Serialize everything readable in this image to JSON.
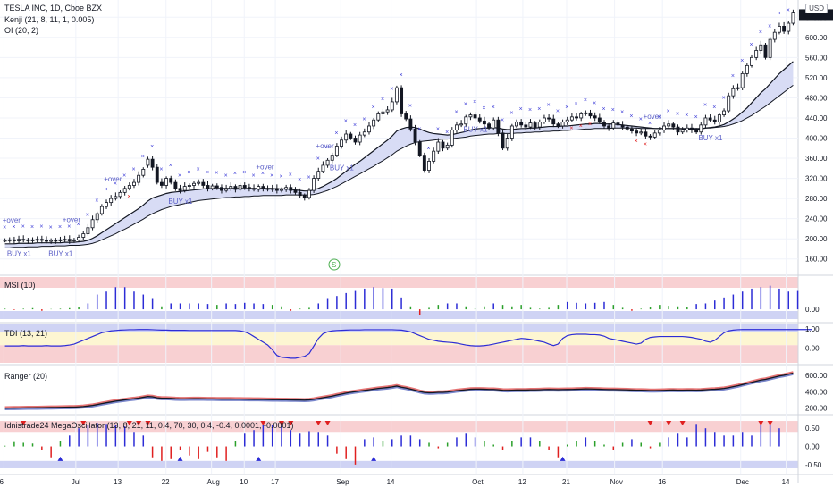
{
  "legend": {
    "symbol": "TESLA INC, 1D, Cboe BZX",
    "kenji": "Kenji (21, 8, 11, 1, 0.005)",
    "oi": "OI (20, 2)"
  },
  "currency": "USD",
  "panes": {
    "msi": "MSI (10)",
    "tdi": "TDI (13, 21)",
    "ranger": "Ranger (20)",
    "mega": "Idnistrade24 MegaOscillator (13, 8, 21, 11, 0.4, 70, 30, 0.4, -0.4, 0.0001, -0.0001)"
  },
  "colors": {
    "up": "#ffffff",
    "down": "#131722",
    "band_fill": "#d8dcf5",
    "band_fill_green": "#d6eed6",
    "line_dark": "#131722",
    "cross_blue": "#3f3fd8",
    "cross_red": "#e02020",
    "bar_blue": "#2c2cd6",
    "bar_red": "#e02020",
    "bar_green": "#2aa02a",
    "zone_red": "#f8d0d2",
    "zone_blue": "#cfd3f4",
    "zone_yellow": "#fdf6d2"
  },
  "chart_data": {
    "type": "candlestick",
    "x_labels": [
      "6",
      "Jul",
      "13",
      "22",
      "Aug",
      "10",
      "17",
      "Sep",
      "14",
      "Oct",
      "12",
      "21",
      "Nov",
      "16",
      "Dec",
      "14"
    ],
    "y_ticks": [
      160,
      200,
      240,
      280,
      320,
      360,
      400,
      440,
      480,
      520,
      560,
      600,
      640
    ],
    "last_price": "649.88",
    "annotations": [
      "BUY x1",
      "+over"
    ],
    "timeline_marker": "S",
    "indicator_ticks": {
      "msi": [
        "0.00"
      ],
      "tdi": [
        "1.00",
        "0.00"
      ],
      "ranger": [
        "600.00",
        "400.00",
        "200.00"
      ],
      "mega": [
        "0.50",
        "0.00",
        "-0.50"
      ]
    },
    "close": [
      197,
      198,
      196,
      199,
      198,
      196,
      198,
      199,
      197,
      195,
      197,
      196,
      198,
      199,
      196,
      198,
      203,
      210,
      222,
      238,
      250,
      264,
      272,
      280,
      284,
      292,
      300,
      306,
      312,
      326,
      338,
      358,
      342,
      312,
      306,
      320,
      312,
      300,
      296,
      304,
      306,
      310,
      312,
      306,
      300,
      305,
      302,
      296,
      300,
      304,
      298,
      306,
      302,
      300,
      298,
      304,
      300,
      298,
      300,
      296,
      298,
      302,
      296,
      292,
      286,
      282,
      296,
      320,
      334,
      346,
      356,
      366,
      384,
      396,
      408,
      400,
      392,
      406,
      412,
      424,
      436,
      448,
      452,
      456,
      472,
      500,
      448,
      438,
      418,
      392,
      366,
      336,
      354,
      374,
      392,
      380,
      386,
      416,
      426,
      428,
      442,
      446,
      440,
      434,
      428,
      420,
      436,
      410,
      380,
      400,
      424,
      432,
      426,
      422,
      430,
      422,
      432,
      440,
      438,
      428,
      424,
      432,
      436,
      442,
      440,
      448,
      450,
      444,
      440,
      432,
      424,
      420,
      430,
      426,
      422,
      418,
      414,
      410,
      412,
      404,
      402,
      410,
      416,
      424,
      428,
      422,
      412,
      416,
      420,
      416,
      412,
      426,
      440,
      436,
      432,
      446,
      454,
      484,
      498,
      500,
      528,
      544,
      560,
      574,
      585,
      560,
      596,
      610,
      622,
      612,
      628,
      650
    ],
    "open": [
      197,
      197,
      198,
      196,
      199,
      198,
      196,
      198,
      199,
      197,
      195,
      197,
      196,
      198,
      199,
      196,
      198,
      203,
      210,
      222,
      238,
      250,
      264,
      272,
      280,
      284,
      292,
      300,
      306,
      312,
      326,
      346,
      358,
      342,
      312,
      306,
      320,
      312,
      300,
      296,
      304,
      306,
      310,
      312,
      306,
      300,
      305,
      302,
      296,
      300,
      304,
      298,
      306,
      302,
      300,
      298,
      304,
      300,
      298,
      300,
      296,
      298,
      302,
      296,
      292,
      286,
      282,
      296,
      320,
      334,
      346,
      356,
      366,
      384,
      396,
      408,
      400,
      392,
      406,
      412,
      424,
      436,
      448,
      452,
      456,
      472,
      500,
      448,
      438,
      418,
      392,
      366,
      336,
      354,
      374,
      392,
      380,
      386,
      416,
      426,
      428,
      442,
      446,
      440,
      434,
      428,
      420,
      436,
      410,
      380,
      400,
      424,
      432,
      426,
      422,
      430,
      422,
      432,
      440,
      438,
      428,
      424,
      432,
      436,
      442,
      440,
      448,
      450,
      444,
      440,
      432,
      424,
      420,
      430,
      426,
      422,
      418,
      414,
      410,
      412,
      404,
      402,
      410,
      416,
      424,
      428,
      422,
      412,
      416,
      420,
      416,
      412,
      426,
      440,
      436,
      432,
      446,
      454,
      484,
      498,
      500,
      528,
      544,
      560,
      574,
      585,
      560,
      596,
      610,
      622,
      612,
      628
    ],
    "ma_fast": [
      190,
      190,
      190,
      191,
      191,
      191,
      191,
      192,
      192,
      192,
      192,
      192,
      192,
      193,
      193,
      193,
      194,
      195,
      197,
      201,
      206,
      212,
      218,
      224,
      230,
      236,
      242,
      248,
      254,
      260,
      267,
      275,
      281,
      284,
      287,
      290,
      292,
      293,
      294,
      295,
      296,
      297,
      298,
      299,
      299,
      300,
      300,
      300,
      300,
      300,
      300,
      300,
      300,
      300,
      300,
      300,
      300,
      300,
      300,
      299,
      299,
      299,
      298,
      297,
      296,
      295,
      295,
      297,
      300,
      304,
      309,
      314,
      320,
      327,
      334,
      341,
      348,
      354,
      361,
      368,
      375,
      382,
      389,
      396,
      404,
      414,
      418,
      421,
      422,
      421,
      418,
      414,
      411,
      409,
      408,
      407,
      406,
      407,
      409,
      411,
      413,
      416,
      418,
      419,
      420,
      420,
      421,
      420,
      418,
      417,
      417,
      418,
      419,
      419,
      420,
      420,
      421,
      422,
      423,
      423,
      423,
      424,
      424,
      425,
      426,
      427,
      428,
      428,
      429,
      429,
      428,
      428,
      428,
      427,
      426,
      425,
      424,
      423,
      422,
      421,
      420,
      419,
      419,
      419,
      419,
      419,
      419,
      418,
      418,
      418,
      418,
      418,
      420,
      421,
      422,
      424,
      427,
      432,
      438,
      444,
      452,
      460,
      470,
      480,
      490,
      498,
      508,
      518,
      528,
      536,
      544,
      552
    ],
    "ma_slow": [
      182,
      182,
      183,
      183,
      183,
      184,
      184,
      184,
      185,
      185,
      185,
      186,
      186,
      186,
      187,
      187,
      187,
      188,
      189,
      191,
      194,
      198,
      202,
      206,
      210,
      215,
      219,
      224,
      229,
      234,
      239,
      245,
      250,
      254,
      258,
      261,
      264,
      266,
      268,
      270,
      272,
      274,
      276,
      277,
      278,
      279,
      280,
      281,
      282,
      282,
      283,
      283,
      284,
      284,
      285,
      285,
      286,
      286,
      286,
      286,
      286,
      287,
      287,
      287,
      287,
      287,
      287,
      288,
      290,
      293,
      296,
      300,
      304,
      309,
      314,
      319,
      324,
      329,
      334,
      339,
      344,
      350,
      355,
      361,
      367,
      374,
      379,
      384,
      388,
      391,
      393,
      394,
      395,
      396,
      397,
      398,
      398,
      399,
      400,
      401,
      402,
      404,
      405,
      406,
      407,
      408,
      408,
      409,
      409,
      409,
      409,
      410,
      410,
      411,
      411,
      412,
      412,
      413,
      413,
      414,
      414,
      415,
      415,
      416,
      416,
      417,
      418,
      418,
      419,
      419,
      419,
      419,
      420,
      420,
      420,
      420,
      420,
      420,
      419,
      419,
      419,
      419,
      419,
      419,
      419,
      419,
      419,
      419,
      419,
      419,
      419,
      419,
      420,
      420,
      421,
      422,
      423,
      425,
      428,
      431,
      435,
      440,
      445,
      451,
      457,
      463,
      470,
      477,
      484,
      491,
      498,
      505
    ],
    "msi_values": [
      0.02,
      0.05,
      -0.02,
      0.03,
      0.02,
      -0.01,
      0.04,
      0.03,
      -0.05,
      0.02,
      0.01,
      0.03,
      0.02,
      -0.02,
      0.04,
      0.02,
      0.08,
      0.12,
      0.2,
      0.35,
      0.5,
      0.55,
      0.6,
      0.7,
      0.75,
      0.8,
      0.75,
      0.7,
      0.6,
      0.55,
      0.5,
      0.4,
      0.35,
      0.2,
      0.1,
      0.15,
      0.2,
      0.18,
      0.2,
      0.22,
      0.2,
      0.25,
      0.2,
      0.22,
      0.18,
      0.2,
      0.15,
      0.18,
      0.2,
      0.22,
      0.18,
      0.2,
      0.22,
      0.25,
      0.2,
      0.22,
      0.18,
      0.2,
      0.15,
      0.12,
      0.1,
      0.08,
      -0.05,
      0.04,
      0.02,
      -0.08,
      0.05,
      0.12,
      0.2,
      0.3,
      0.35,
      0.4,
      0.45,
      0.5,
      0.55,
      0.6,
      0.62,
      0.65,
      0.7,
      0.72,
      0.75,
      0.7,
      0.72,
      0.75,
      0.7,
      0.65,
      0.4,
      0.3,
      0.1,
      -0.1,
      -0.2,
      -0.15,
      0.05,
      0.1,
      0.15,
      0.1,
      0.2,
      0.25,
      0.2,
      0.15,
      0.1,
      0.05,
      0.02,
      -0.02,
      0.1,
      0.18,
      0.2,
      0.25,
      0.15,
      0.05,
      0.1,
      0.2,
      0.15,
      0.1,
      0.05,
      0.08,
      0.02,
      -0.02,
      0.05,
      0.1,
      0.15,
      0.2,
      0.25,
      0.2,
      0.22,
      0.25,
      0.2,
      0.25,
      0.22,
      0.2,
      0.25,
      0.2,
      0.15,
      0.1,
      0.05,
      0.02,
      -0.05,
      0.03,
      0.02,
      0.05,
      0.08,
      0.12,
      0.15,
      0.1,
      0.12,
      0.08,
      0.1,
      0.05,
      0.08,
      0.12,
      0.18,
      0.25,
      0.2,
      0.25,
      0.3,
      0.35,
      0.4,
      0.45,
      0.5,
      0.55,
      0.6,
      0.65,
      0.7,
      0.72,
      0.75,
      0.78,
      0.8,
      0.75,
      0.7,
      0.65,
      0.6,
      0.65,
      0.62,
      0.6
    ],
    "tdi_values": [
      0.1,
      0.1,
      0.1,
      0.1,
      0.12,
      0.1,
      0.1,
      0.1,
      0.1,
      0.12,
      0.1,
      0.1,
      0.1,
      0.12,
      0.15,
      0.2,
      0.3,
      0.4,
      0.5,
      0.6,
      0.7,
      0.8,
      0.85,
      0.9,
      0.92,
      0.94,
      0.95,
      0.96,
      0.96,
      0.97,
      0.97,
      0.97,
      0.96,
      0.95,
      0.94,
      0.94,
      0.93,
      0.93,
      0.93,
      0.93,
      0.92,
      0.92,
      0.92,
      0.92,
      0.92,
      0.92,
      0.92,
      0.92,
      0.92,
      0.92,
      0.92,
      0.9,
      0.85,
      0.75,
      0.6,
      0.45,
      0.3,
      0.15,
      -0.1,
      -0.4,
      -0.5,
      -0.52,
      -0.55,
      -0.55,
      -0.5,
      -0.45,
      -0.3,
      0.1,
      0.5,
      0.75,
      0.85,
      0.9,
      0.92,
      0.93,
      0.94,
      0.95,
      0.95,
      0.95,
      0.96,
      0.96,
      0.96,
      0.96,
      0.96,
      0.96,
      0.96,
      0.95,
      0.94,
      0.9,
      0.85,
      0.75,
      0.65,
      0.55,
      0.45,
      0.4,
      0.35,
      0.32,
      0.3,
      0.28,
      0.25,
      0.2,
      0.15,
      0.12,
      0.1,
      0.1,
      0.12,
      0.15,
      0.2,
      0.25,
      0.3,
      0.35,
      0.4,
      0.45,
      0.5,
      0.48,
      0.45,
      0.4,
      0.35,
      0.3,
      0.2,
      0.12,
      0.2,
      0.5,
      0.65,
      0.7,
      0.72,
      0.72,
      0.72,
      0.7,
      0.7,
      0.68,
      0.62,
      0.5,
      0.45,
      0.4,
      0.35,
      0.3,
      0.25,
      0.2,
      0.25,
      0.45,
      0.55,
      0.58,
      0.6,
      0.6,
      0.6,
      0.6,
      0.6,
      0.6,
      0.58,
      0.55,
      0.5,
      0.45,
      0.35,
      0.3,
      0.4,
      0.6,
      0.8,
      0.9,
      0.94,
      0.96,
      0.97,
      0.97,
      0.97,
      0.97,
      0.97,
      0.97,
      0.97,
      0.97,
      0.97,
      0.97,
      0.97,
      0.97,
      0.97,
      0.97,
      0.97,
      0.97
    ],
    "mega_values": [
      0.02,
      0.08,
      0.12,
      0.15,
      0.1,
      0.12,
      0.08,
      0.1,
      -0.1,
      -0.2,
      -0.3,
      -0.5,
      0.15,
      0.25,
      0.3,
      0.4,
      0.5,
      0.55,
      0.6,
      0.62,
      0.65,
      0.6,
      0.62,
      0.65,
      0.6,
      0.58,
      0.55,
      0.45,
      0.4,
      0.35,
      0.3,
      0.35,
      -0.3,
      -0.5,
      -0.4,
      -0.3,
      -0.35,
      -0.2,
      -0.1,
      -0.15,
      -0.25,
      -0.3,
      -0.35,
      -0.2,
      -0.15,
      -0.25,
      -0.3,
      -0.35,
      -0.4,
      -0.5,
      0.15,
      0.25,
      0.35,
      0.4,
      0.45,
      0.55,
      0.6,
      0.62,
      0.6,
      0.58,
      0.62,
      0.5,
      0.45,
      0.4,
      0.35,
      0.4,
      0.42,
      0.45,
      0.4,
      0.35,
      0.3,
      -0.1,
      -0.2,
      -0.3,
      -0.35,
      -0.4,
      -0.5,
      0.1,
      0.2,
      0.3,
      0.25,
      0.2,
      0.15,
      0.1,
      0.2,
      0.25,
      0.3,
      0.35,
      0.3,
      0.25,
      0.2,
      0.15,
      0.1,
      0.05,
      -0.05,
      -0.1,
      0.1,
      0.2,
      0.25,
      0.3,
      0.35,
      0.3,
      0.25,
      0.2,
      0.15,
      0.1,
      0.05,
      -0.05,
      -0.1,
      0.1,
      0.15,
      0.2,
      0.25,
      0.3,
      0.25,
      0.2,
      0.15,
      0.1,
      -0.1,
      -0.2,
      -0.3,
      -0.5,
      0.05,
      0.1,
      0.15,
      0.2,
      0.25,
      0.2,
      0.15,
      0.1,
      0.05,
      -0.05,
      -0.1,
      -0.15,
      0.1,
      0.15,
      0.2,
      0.15,
      0.1,
      0.05,
      -0.05,
      -0.1,
      0.1,
      0.2,
      0.25,
      0.3,
      0.35,
      0.3,
      0.25,
      0.6,
      0.62,
      0.55,
      0.5,
      0.45,
      0.4,
      0.35,
      0.3,
      0.25,
      0.3,
      0.35,
      0.4,
      0.35,
      0.3,
      0.25,
      0.6,
      0.62,
      0.58,
      0.55,
      0.5,
      0.45
    ],
    "ranger_close": [
      195,
      196,
      197,
      198,
      199,
      200,
      200,
      201,
      202,
      203,
      204,
      205,
      206,
      207,
      208,
      209,
      212,
      216,
      222,
      230,
      240,
      252,
      262,
      272,
      282,
      290,
      298,
      306,
      312,
      320,
      330,
      340,
      336,
      324,
      318,
      318,
      316,
      312,
      310,
      310,
      311,
      312,
      312,
      311,
      310,
      310,
      309,
      308,
      308,
      308,
      307,
      307,
      306,
      305,
      304,
      304,
      303,
      302,
      301,
      300,
      299,
      299,
      298,
      297,
      296,
      295,
      298,
      305,
      315,
      325,
      335,
      345,
      358,
      370,
      382,
      392,
      400,
      408,
      416,
      424,
      432,
      440,
      446,
      452,
      460,
      470,
      456,
      446,
      432,
      418,
      402,
      390,
      386,
      388,
      392,
      392,
      396,
      404,
      412,
      418,
      424,
      430,
      432,
      432,
      430,
      428,
      428,
      424,
      418,
      416,
      418,
      420,
      420,
      420,
      422,
      422,
      424,
      426,
      427,
      426,
      425,
      426,
      427,
      428,
      430,
      432,
      434,
      433,
      432,
      430,
      428,
      426,
      426,
      425,
      424,
      422,
      420,
      418,
      418,
      416,
      414,
      414,
      415,
      417,
      419,
      420,
      418,
      418,
      419,
      419,
      418,
      420,
      424,
      428,
      430,
      434,
      440,
      450,
      462,
      474,
      488,
      502,
      516,
      530,
      544,
      552,
      566,
      580,
      594,
      604,
      616,
      630
    ],
    "buy_markers": [
      0.01,
      0.065,
      0.215,
      0.42,
      0.59,
      0.89
    ],
    "over_markers": [
      0.005,
      0.08,
      0.135,
      0.33,
      0.405,
      0.82
    ],
    "red_cross_markers": [
      0.16,
      0.72,
      0.73,
      0.74,
      0.8,
      0.81
    ],
    "mega_top_triangles": [
      0.025,
      0.1,
      0.16,
      0.17,
      0.18,
      0.33,
      0.35,
      0.36,
      0.4,
      0.41,
      0.82,
      0.84,
      0.86,
      0.96,
      0.97
    ],
    "mega_bottom_triangles": [
      0.07,
      0.22,
      0.32,
      0.47,
      0.71
    ],
    "price_min": 140,
    "price_max": 660
  }
}
